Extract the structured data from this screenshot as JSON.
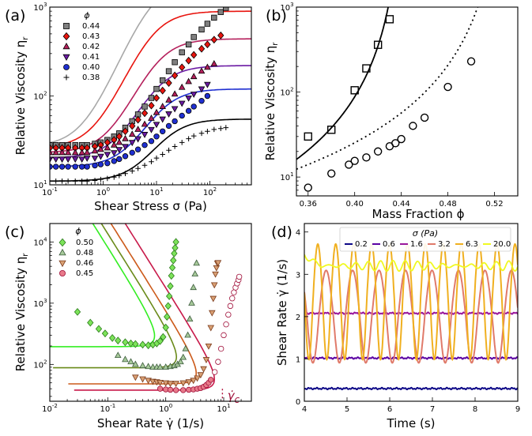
{
  "panels": [
    {
      "label": "(a)"
    },
    {
      "label": "(b)"
    },
    {
      "label": "(c)"
    },
    {
      "label": "(d)"
    }
  ],
  "chart_data": [
    {
      "id": "a",
      "type": "scatter",
      "xlabel": "Shear Stress σ (Pa)",
      "ylabel": "Relative Viscosity η_r",
      "xscale": "log",
      "yscale": "log",
      "xlim": [
        0.1,
        600
      ],
      "ylim": [
        10,
        1000
      ],
      "xticks": [
        {
          "v": 0.1,
          "label": "10^-1"
        },
        {
          "v": 1,
          "label": "10^0"
        },
        {
          "v": 10,
          "label": "10^1"
        },
        {
          "v": 100,
          "label": "10^2"
        }
      ],
      "yticks": [
        {
          "v": 10,
          "label": "10^1"
        },
        {
          "v": 100,
          "label": "10^2"
        },
        {
          "v": 1000,
          "label": "10^3"
        }
      ],
      "legend_title": "ϕ",
      "legend_position": "top-left",
      "series": [
        {
          "name": "0.44",
          "marker": "square",
          "color": "#808080",
          "eta0": 27,
          "etainf": 2000,
          "sigmastar": 8,
          "x": [
            0.1,
            0.13,
            0.17,
            0.22,
            0.3,
            0.4,
            0.5,
            0.7,
            0.9,
            1.2,
            1.6,
            2,
            2.6,
            3.5,
            4.5,
            6,
            8,
            10,
            13,
            17,
            22,
            30,
            40,
            50,
            70,
            90,
            120,
            160,
            200
          ],
          "y": [
            28,
            28,
            28,
            28,
            28,
            28,
            28,
            29,
            30,
            32,
            35,
            38,
            44,
            52,
            62,
            76,
            95,
            120,
            150,
            190,
            240,
            310,
            380,
            460,
            560,
            650,
            760,
            880,
            980
          ]
        },
        {
          "name": "0.43",
          "marker": "diamond",
          "color": "#e8150f",
          "eta0": 26,
          "etainf": 900,
          "sigmastar": 8,
          "x": [
            0.1,
            0.13,
            0.17,
            0.22,
            0.3,
            0.4,
            0.5,
            0.7,
            0.9,
            1.2,
            1.6,
            2,
            2.6,
            3.5,
            4.5,
            6,
            8,
            10,
            13,
            17,
            22,
            30,
            40,
            50,
            70,
            90,
            120,
            160
          ],
          "y": [
            26,
            26,
            26,
            26,
            26,
            26,
            26,
            27,
            28,
            30,
            32,
            35,
            40,
            46,
            54,
            64,
            78,
            95,
            115,
            140,
            170,
            210,
            250,
            290,
            340,
            380,
            430,
            480
          ]
        },
        {
          "name": "0.42",
          "marker": "triangle",
          "color": "#b5205c",
          "eta0": 23,
          "etainf": 440,
          "sigmastar": 10,
          "x": [
            0.1,
            0.13,
            0.17,
            0.22,
            0.3,
            0.4,
            0.5,
            0.7,
            0.9,
            1.2,
            1.6,
            2,
            2.6,
            3.5,
            4.5,
            6,
            8,
            10,
            13,
            17,
            22,
            30,
            40,
            50,
            70,
            90,
            120
          ],
          "y": [
            23,
            23,
            23,
            23,
            23,
            23,
            23,
            24,
            25,
            26,
            28,
            30,
            33,
            37,
            42,
            48,
            56,
            65,
            76,
            90,
            105,
            125,
            145,
            165,
            190,
            210,
            230
          ]
        },
        {
          "name": "0.41",
          "marker": "triangle-down",
          "color": "#6b1aa3",
          "eta0": 20,
          "etainf": 220,
          "sigmastar": 10,
          "x": [
            0.1,
            0.13,
            0.17,
            0.22,
            0.3,
            0.4,
            0.5,
            0.7,
            0.9,
            1.2,
            1.6,
            2,
            2.6,
            3.5,
            4.5,
            6,
            8,
            10,
            13,
            17,
            22,
            30,
            40,
            50,
            70,
            90
          ],
          "y": [
            19.5,
            19.5,
            19.5,
            19.5,
            19.5,
            19.5,
            20,
            20,
            21,
            22,
            23,
            25,
            27,
            30,
            33,
            37,
            42,
            48,
            55,
            63,
            72,
            83,
            95,
            105,
            120,
            135
          ]
        },
        {
          "name": "0.40",
          "marker": "circle",
          "color": "#1f2fd1",
          "eta0": 16,
          "etainf": 120,
          "sigmastar": 12,
          "x": [
            0.1,
            0.13,
            0.17,
            0.22,
            0.3,
            0.4,
            0.5,
            0.7,
            0.9,
            1.2,
            1.6,
            2,
            2.6,
            3.5,
            4.5,
            6,
            8,
            10,
            13,
            17,
            22,
            30,
            40,
            50,
            70,
            90
          ],
          "y": [
            16,
            16,
            16,
            16,
            16,
            16,
            16,
            16.5,
            17,
            17.5,
            18.5,
            19.5,
            21,
            23,
            25,
            28,
            31,
            35,
            40,
            46,
            52,
            60,
            68,
            76,
            88,
            100
          ]
        },
        {
          "name": "0.38",
          "marker": "plus",
          "color": "#000000",
          "eta0": 11,
          "etainf": 55,
          "sigmastar": 15,
          "x": [
            0.1,
            0.13,
            0.17,
            0.22,
            0.3,
            0.4,
            0.5,
            0.7,
            0.9,
            1.2,
            1.6,
            2,
            2.6,
            3.5,
            4.5,
            6,
            8,
            10,
            13,
            17,
            22,
            30,
            40,
            50,
            70,
            90,
            120,
            160,
            200
          ],
          "y": [
            11,
            11,
            11,
            11,
            11,
            11,
            11,
            11.2,
            11.5,
            11.8,
            12.2,
            12.7,
            13.4,
            14.3,
            15.3,
            16.6,
            18.2,
            20,
            22,
            24.5,
            27,
            30,
            33,
            35.5,
            38,
            40,
            42,
            43,
            44
          ]
        }
      ],
      "fit_curves": "solid lines in series colors (0.44 fit drawn in light gray)"
    },
    {
      "id": "b",
      "type": "scatter",
      "xlabel": "Mass Fraction ϕ",
      "ylabel": "Relative Viscosity η_r",
      "xscale": "linear",
      "yscale": "log",
      "xlim": [
        0.35,
        0.54
      ],
      "ylim": [
        6,
        1000
      ],
      "xticks": [
        {
          "v": 0.36,
          "label": "0.36"
        },
        {
          "v": 0.4,
          "label": "0.40"
        },
        {
          "v": 0.44,
          "label": "0.44"
        },
        {
          "v": 0.48,
          "label": "0.48"
        },
        {
          "v": 0.52,
          "label": "0.52"
        }
      ],
      "yticks": [
        {
          "v": 10,
          "label": "10^1"
        },
        {
          "v": 100,
          "label": "10^2"
        },
        {
          "v": 1000,
          "label": "10^3"
        }
      ],
      "series": [
        {
          "marker": "open-square",
          "x": [
            0.36,
            0.38,
            0.4,
            0.41,
            0.42,
            0.43
          ],
          "y": [
            30,
            36,
            105,
            190,
            360,
            720
          ],
          "fit": "solid",
          "phimax": 0.443,
          "A": 0.26,
          "n": 2.2
        },
        {
          "marker": "open-circle",
          "x": [
            0.36,
            0.38,
            0.395,
            0.4,
            0.41,
            0.42,
            0.43,
            0.435,
            0.44,
            0.45,
            0.46,
            0.48,
            0.5
          ],
          "y": [
            7.5,
            11,
            14,
            15.5,
            17,
            20,
            23,
            25,
            28,
            40,
            50,
            115,
            230
          ],
          "fit": "dotted",
          "phimax": 0.53,
          "A": 1.15,
          "n": 2.2
        }
      ]
    },
    {
      "id": "c",
      "type": "scatter",
      "xlabel": "Shear Rate γ̇ (1/s)",
      "ylabel": "Relative Viscosity η_r",
      "xscale": "log",
      "yscale": "log",
      "xlim": [
        0.01,
        30
      ],
      "ylim": [
        25,
        20000
      ],
      "xticks": [
        {
          "v": 0.01,
          "label": "10^-2"
        },
        {
          "v": 0.1,
          "label": "10^-1"
        },
        {
          "v": 1,
          "label": "10^0"
        },
        {
          "v": 10,
          "label": "10^1"
        }
      ],
      "yticks": [
        {
          "v": 100,
          "label": "10^2"
        },
        {
          "v": 1000,
          "label": "10^3"
        },
        {
          "v": 10000,
          "label": "10^4"
        }
      ],
      "legend_title": "ϕ",
      "legend_position": "top-left",
      "annotation": "γ̇_c",
      "critical_rate": 9.5,
      "series": [
        {
          "name": "0.50",
          "marker": "diamond",
          "color": "#7de35a",
          "edge": "#2a7a1a",
          "curve": "#33ee22",
          "base": 195,
          "wall": 1.3,
          "x": [
            0.03,
            0.05,
            0.07,
            0.09,
            0.12,
            0.15,
            0.2,
            0.25,
            0.3,
            0.4,
            0.5,
            0.6,
            0.7,
            0.8,
            0.9,
            1.0,
            1.05,
            1.1,
            1.15,
            1.2,
            1.25,
            1.3,
            1.35,
            1.4,
            1.45,
            1.5
          ],
          "y": [
            720,
            480,
            380,
            320,
            270,
            245,
            230,
            220,
            215,
            210,
            205,
            210,
            220,
            240,
            280,
            400,
            600,
            900,
            1300,
            1900,
            2800,
            3800,
            5000,
            6500,
            8000,
            10000
          ]
        },
        {
          "name": "0.48",
          "marker": "triangle",
          "color": "#a7c99a",
          "edge": "#3a5a3a",
          "curve": "#6a8a1a",
          "base": 88,
          "wall": 3.1,
          "x": [
            0.15,
            0.2,
            0.25,
            0.3,
            0.4,
            0.5,
            0.6,
            0.7,
            0.8,
            1.0,
            1.2,
            1.4,
            1.6,
            1.8,
            2.0,
            2.2,
            2.4,
            2.6,
            2.8,
            3.0,
            3.2,
            3.4
          ],
          "y": [
            140,
            120,
            110,
            100,
            95,
            92,
            90,
            90,
            90,
            90,
            92,
            95,
            100,
            110,
            130,
            180,
            300,
            550,
            1000,
            1800,
            3000,
            4500
          ]
        },
        {
          "name": "0.46",
          "marker": "triangle-down",
          "color": "#d9a074",
          "edge": "#7a3a1a",
          "curve": "#cc5a1a",
          "base": 48,
          "wall": 6.8,
          "x": [
            0.3,
            0.4,
            0.5,
            0.6,
            0.7,
            0.8,
            1.0,
            1.2,
            1.5,
            2.0,
            2.5,
            3.0,
            3.5,
            4.0,
            4.5,
            5.0,
            5.5,
            6.0,
            6.3,
            6.6,
            6.9,
            7.2,
            7.5,
            7.8,
            8.0
          ],
          "y": [
            62,
            58,
            55,
            53,
            52,
            51,
            50,
            49,
            49,
            50,
            52,
            55,
            60,
            68,
            85,
            120,
            200,
            400,
            700,
            1200,
            2000,
            3000,
            3800,
            4500,
            4600
          ]
        },
        {
          "name": "0.45",
          "marker": "circle",
          "color": "#e87a8a",
          "edge": "#a0103a",
          "curve": "#c81a4a",
          "base": 38,
          "wall": 14,
          "x": [
            0.8,
            1.0,
            1.2,
            1.5,
            2.0,
            2.5,
            3.0,
            3.5,
            4.0,
            4.5,
            5.0,
            5.5,
            6.0,
            7.0,
            8.0,
            9.0,
            10,
            11,
            12,
            13,
            14,
            15,
            16,
            17,
            18,
            18.5
          ],
          "y": [
            40,
            39,
            38.5,
            38,
            38,
            38.5,
            39,
            40,
            41,
            43,
            46,
            50,
            56,
            75,
            110,
            180,
            300,
            450,
            650,
            900,
            1200,
            1500,
            1800,
            2100,
            2400,
            2700
          ]
        }
      ]
    },
    {
      "id": "d",
      "type": "line",
      "xlabel": "Time (s)",
      "ylabel": "Shear Rate γ̇ (1/s)",
      "xlim": [
        4,
        9
      ],
      "ylim": [
        0,
        4.2
      ],
      "xticks": [
        4,
        5,
        6,
        7,
        8,
        9
      ],
      "yticks": [
        0,
        1,
        2,
        3,
        4
      ],
      "legend_title": "σ (Pa)",
      "legend_position": "top",
      "series": [
        {
          "name": "0.2",
          "color": "#0d0887",
          "mean": 0.3,
          "amp": 0.0
        },
        {
          "name": "0.6",
          "color": "#5b02a3",
          "mean": 1.02,
          "amp": 0.0
        },
        {
          "name": "1.6",
          "color": "#9a179b",
          "mean": 2.08,
          "amp": 0.0
        },
        {
          "name": "3.2",
          "color": "#e07a6a",
          "mean": 2.0,
          "amp": 1.15,
          "period": 0.62
        },
        {
          "name": "6.3",
          "color": "#f0b020",
          "mean": 2.35,
          "amp": 1.3,
          "period": 0.42
        },
        {
          "name": "20.0",
          "color": "#f0f921",
          "mean": 3.2,
          "amp": 0.15,
          "period": 0.3
        }
      ]
    }
  ]
}
